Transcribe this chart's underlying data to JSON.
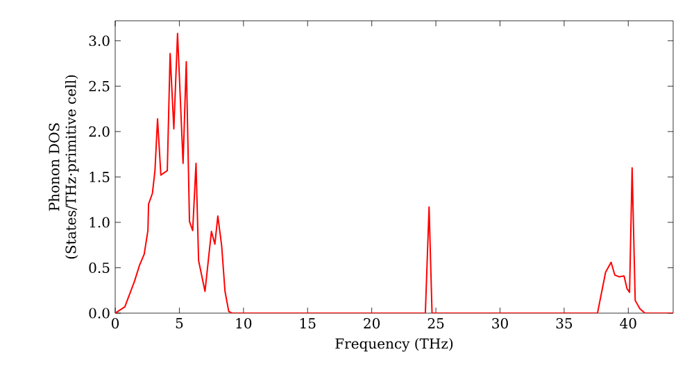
{
  "chart_data": {
    "type": "line",
    "xlabel": "Frequency (THz)",
    "ylabel": "Phonon DOS\n(States/THz·primitive cell)",
    "xlim": [
      0,
      43.5
    ],
    "ylim": [
      0,
      3.22
    ],
    "xticks": [
      0,
      5,
      10,
      15,
      20,
      25,
      30,
      35,
      40
    ],
    "yticks": [
      {
        "value": 0,
        "label": "0.0"
      },
      {
        "value": 0.5,
        "label": "0.5"
      },
      {
        "value": 1,
        "label": "1.0"
      },
      {
        "value": 1.5,
        "label": "1.5"
      },
      {
        "value": 2,
        "label": "2.0"
      },
      {
        "value": 2.5,
        "label": "2.5"
      },
      {
        "value": 3,
        "label": "3.0"
      }
    ],
    "marker": "none",
    "line_style": "solid",
    "series": [
      {
        "color": "#ff0000",
        "x": [
          0,
          0.75,
          1.5,
          1.9,
          2.26,
          2.55,
          2.6,
          2.9,
          3.1,
          3.3,
          3.56,
          3.85,
          4.06,
          4.28,
          4.57,
          4.86,
          5.29,
          5.54,
          5.79,
          6.04,
          6.3,
          6.5,
          7.0,
          7.5,
          7.77,
          8.0,
          8.3,
          8.56,
          8.85,
          9.1,
          24.18,
          24.47,
          24.7,
          37.6,
          38.23,
          38.66,
          38.95,
          39.3,
          39.67,
          39.9,
          40.1,
          40.3,
          40.54,
          40.9,
          41.3,
          43.5
        ],
        "values": [
          0,
          0.07,
          0.35,
          0.53,
          0.65,
          0.91,
          1.2,
          1.32,
          1.57,
          2.14,
          1.52,
          1.55,
          1.57,
          2.86,
          2.03,
          3.08,
          1.65,
          2.77,
          1.01,
          0.91,
          1.65,
          0.58,
          0.24,
          0.9,
          0.76,
          1.07,
          0.74,
          0.24,
          0.02,
          0,
          0,
          1.17,
          0,
          0,
          0.45,
          0.56,
          0.42,
          0.4,
          0.41,
          0.27,
          0.23,
          1.6,
          0.14,
          0.05,
          0,
          0
        ]
      }
    ]
  }
}
